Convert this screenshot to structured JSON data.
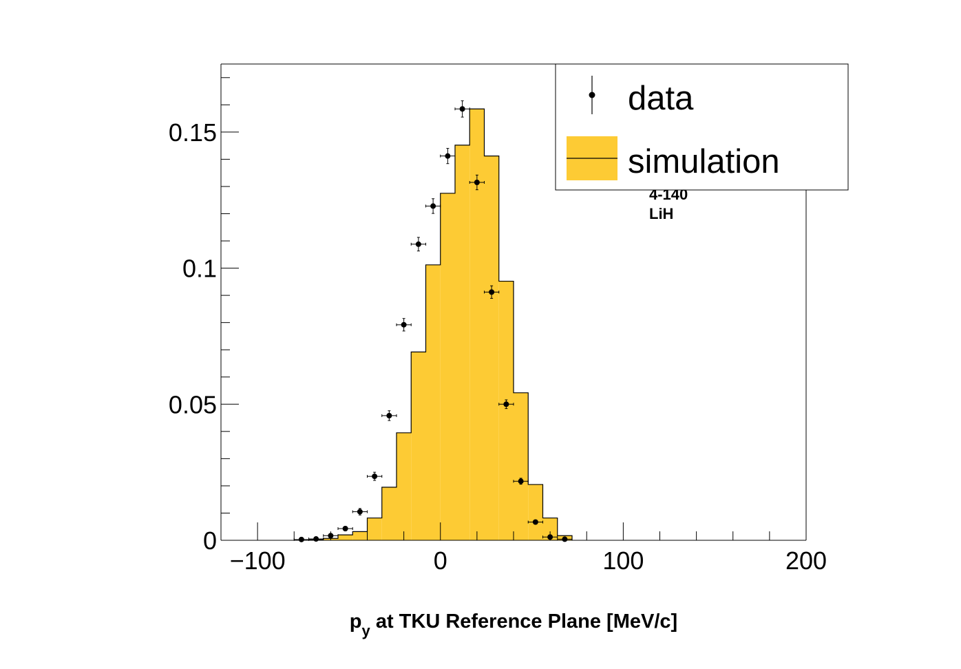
{
  "chart_data": {
    "type": "bar",
    "xlabel_main": "p",
    "xlabel_sub": "y",
    "xlabel_rest": " at TKU Reference Plane [MeV/c]",
    "ylabel": "",
    "xlim": [
      -120,
      200
    ],
    "ylim": [
      0,
      0.175
    ],
    "x_ticks": [
      -100,
      0,
      100,
      200
    ],
    "x_tick_labels": [
      "−100",
      "0",
      "100",
      "200"
    ],
    "y_ticks": [
      0,
      0.05,
      0.1,
      0.15
    ],
    "y_tick_labels": [
      "0",
      "0.05",
      "0.1",
      "0.15"
    ],
    "legend_position": "top-right",
    "annotations": [
      "4-140",
      "LiH"
    ],
    "colors": {
      "simulation_fill": "#fdcb34",
      "line": "#000000"
    },
    "series": [
      {
        "name": "simulation",
        "type": "histogram",
        "bin_edges": [
          -72,
          -64,
          -56,
          -48,
          -40,
          -32,
          -24,
          -16,
          -8,
          0,
          8,
          16,
          24,
          32,
          40,
          48,
          56,
          64,
          72
        ],
        "values": [
          0.0002,
          0.0007,
          0.002,
          0.0032,
          0.0082,
          0.0195,
          0.0395,
          0.0692,
          0.1012,
          0.1275,
          0.1452,
          0.1585,
          0.1412,
          0.0952,
          0.0542,
          0.0205,
          0.0082,
          0.0017
        ]
      },
      {
        "name": "data",
        "type": "points",
        "x": [
          -76,
          -68,
          -60,
          -52,
          -44,
          -36,
          -28,
          -20,
          -12,
          -4,
          4,
          12,
          20,
          28,
          36,
          44,
          52,
          60,
          68
        ],
        "y": [
          0.0003,
          0.0005,
          0.0017,
          0.0043,
          0.0105,
          0.0235,
          0.0458,
          0.0792,
          0.1088,
          0.1228,
          0.1412,
          0.1585,
          0.1315,
          0.0912,
          0.05,
          0.0217,
          0.0067,
          0.0012,
          0.0004
        ],
        "xerr": 4,
        "yerr": [
          0.0002,
          0.0003,
          0.0006,
          0.0008,
          0.0012,
          0.0015,
          0.0018,
          0.0023,
          0.0025,
          0.0027,
          0.0028,
          0.003,
          0.0027,
          0.0023,
          0.0016,
          0.0011,
          0.0006,
          0.0003,
          0.0002
        ]
      }
    ]
  }
}
